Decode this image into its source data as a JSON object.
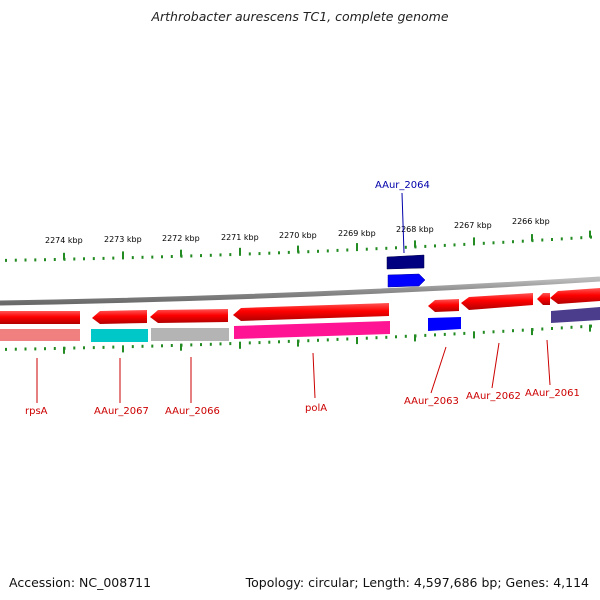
{
  "title": "Arthrobacter aurescens TC1, complete genome",
  "footer": {
    "accession": "Accession: NC_008711",
    "topology": "Topology: circular; Length: 4,597,686 bp; Genes: 4,114"
  },
  "scale_labels": [
    "2274 kbp",
    "2273 kbp",
    "2272 kbp",
    "2271 kbp",
    "2270 kbp",
    "2269 kbp",
    "2268 kbp",
    "2267 kbp",
    "2266 kbp"
  ],
  "gene_labels": {
    "rpsA": "rpsA",
    "AAur_2067": "AAur_2067",
    "AAur_2066": "AAur_2066",
    "polA": "polA",
    "AAur_2063": "AAur_2063",
    "AAur_2062": "AAur_2062",
    "AAur_2061": "AAur_2061",
    "AAur_2064": "AAur_2064"
  },
  "colors": {
    "gene_red": "#ff0000",
    "gene_red_dark": "#c00000",
    "label_red": "#cc0000",
    "label_blue": "#0000aa",
    "backbone": "#8c8c8c",
    "ticks": "#228b22",
    "pink": "#f08080",
    "cyan": "#00c8c8",
    "gray": "#b4b4b4",
    "magenta": "#ff1493",
    "blue": "#0000ff",
    "navy": "#000080",
    "slate": "#4b3c8c"
  }
}
